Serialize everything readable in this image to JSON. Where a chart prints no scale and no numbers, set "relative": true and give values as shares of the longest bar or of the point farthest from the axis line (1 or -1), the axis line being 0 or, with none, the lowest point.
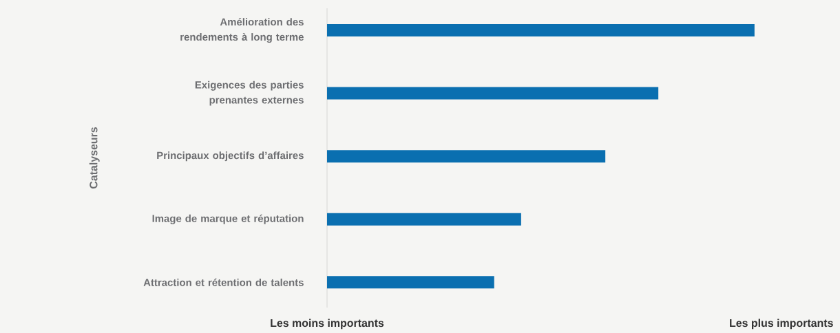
{
  "chart_data": {
    "type": "bar",
    "orientation": "horizontal",
    "relative": true,
    "ylabel": "Catalyseurs",
    "categories": [
      "Amélioration des rendements à long terme",
      "Exigences des parties prenantes externes",
      "Principaux objectifs d’affaires",
      "Image de marque et réputation",
      "Attraction et rétention de talents"
    ],
    "values": [
      1,
      0.775,
      0.651,
      0.454,
      0.391
    ],
    "color": "#0a6fb0",
    "annotations": [
      "Les moins importants",
      "Les plus importants"
    ]
  }
}
